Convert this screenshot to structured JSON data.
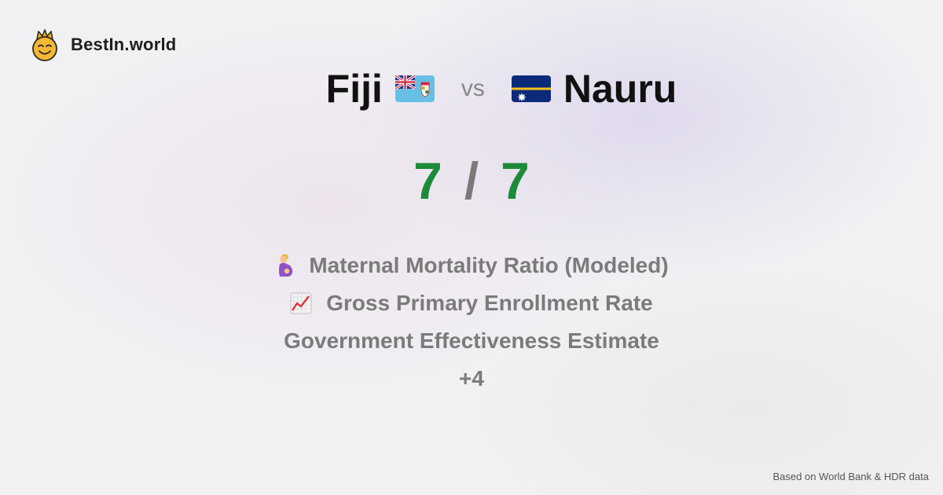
{
  "brand": {
    "name": "BestIn.world",
    "logo_icon": "crowned-smiley-icon"
  },
  "comparison": {
    "country_a": {
      "name": "Fiji",
      "flag_icon": "fiji-flag-icon"
    },
    "vs_label": "vs",
    "country_b": {
      "name": "Nauru",
      "flag_icon": "nauru-flag-icon"
    }
  },
  "score": {
    "left": "7",
    "separator": "/",
    "right": "7"
  },
  "metrics": [
    {
      "icon": "pregnant-woman-icon",
      "label": "Maternal Mortality Ratio (Modeled)"
    },
    {
      "icon": "chart-increasing-icon",
      "label": "Gross Primary Enrollment Rate"
    },
    {
      "icon": "",
      "label": "Government Effectiveness Estimate"
    }
  ],
  "more_label": "+4",
  "footer": {
    "source": "Based on World Bank & HDR data"
  },
  "colors": {
    "score_green": "#1d8a3a",
    "muted_text": "#7b7b7b"
  }
}
